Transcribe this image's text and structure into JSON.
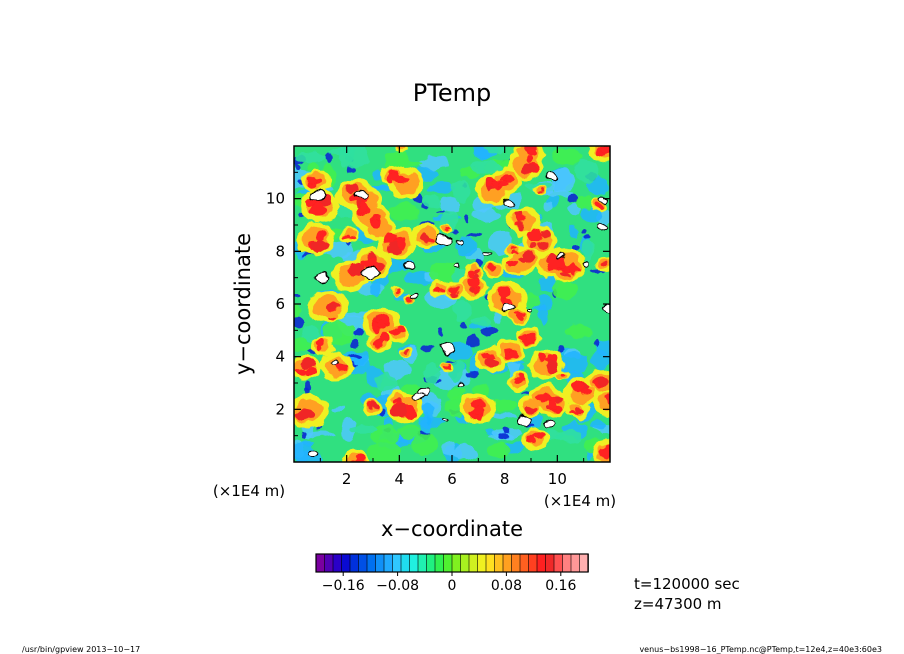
{
  "chart_data": {
    "type": "heatmap",
    "title": "PTemp",
    "xlabel": "x−coordinate",
    "ylabel": "y−coordinate",
    "x_units": "(×1E4 m)",
    "y_units": "(×1E4 m)",
    "xlim": [
      0,
      12
    ],
    "ylim": [
      0,
      12
    ],
    "x_ticks": [
      2,
      4,
      6,
      8,
      10
    ],
    "y_ticks": [
      2,
      4,
      6,
      8,
      10
    ],
    "x_tick_labels": [
      "2",
      "4",
      "6",
      "8",
      "10"
    ],
    "y_tick_labels": [
      "2",
      "4",
      "6",
      "8",
      "10"
    ],
    "colorbar": {
      "range": [
        -0.2,
        0.2
      ],
      "ticks": [
        -0.16,
        -0.08,
        0,
        0.08,
        0.16
      ],
      "tick_labels": [
        "−0.16",
        "−0.08",
        "0",
        "0.08",
        "0.16"
      ],
      "colors": [
        "#7a00a0",
        "#5200b4",
        "#2a00c8",
        "#0a0ad2",
        "#0030dc",
        "#0050e6",
        "#0070f0",
        "#1090f8",
        "#20aaff",
        "#30c8ff",
        "#20dcf0",
        "#20f0e0",
        "#20f0b0",
        "#20f080",
        "#30f050",
        "#50f030",
        "#80f020",
        "#a8f020",
        "#d0f020",
        "#f0f020",
        "#ffe020",
        "#ffc020",
        "#ffa020",
        "#ff8020",
        "#ff6020",
        "#ff4020",
        "#ff2020",
        "#f02828",
        "#ff5050",
        "#ff8080",
        "#ff9898",
        "#ffb0b0"
      ],
      "over_color": "#ffffff",
      "under_color": "#000000"
    },
    "field_note_colors": {
      "background": "#30e080",
      "cool": "#20b4ff",
      "deep_cool": "#0a28d2",
      "warm": "#f0f020",
      "hot": "#ff2020"
    }
  },
  "annotations": {
    "time": "t=120000 sec",
    "height": "z=47300 m"
  },
  "footer": {
    "left": "/usr/bin/gpview  2013−10−17",
    "right": "venus−bs1998−16_PTemp.nc@PTemp,t=12e4,z=40e3:60e3"
  }
}
